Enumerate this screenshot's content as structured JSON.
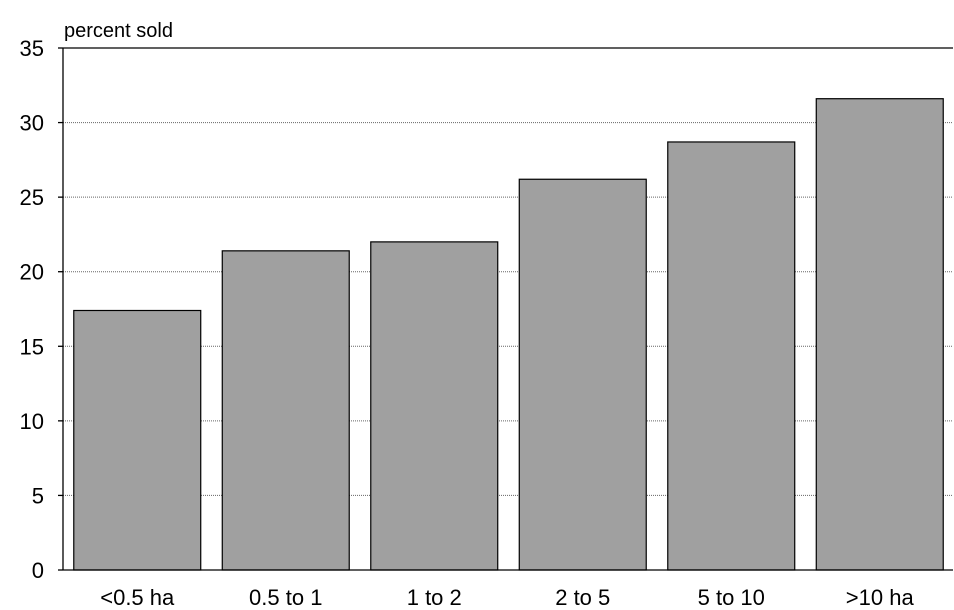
{
  "chart_data": {
    "type": "bar",
    "title": "",
    "xlabel": "",
    "ylabel": "percent sold",
    "categories": [
      "<0.5 ha",
      "0.5 to 1",
      "1 to 2",
      "2 to 5",
      "5 to 10",
      ">10 ha"
    ],
    "values": [
      17.4,
      21.4,
      22.0,
      26.2,
      28.7,
      31.6
    ],
    "ylim": [
      0,
      35
    ],
    "yticks": [
      0,
      5,
      10,
      15,
      20,
      25,
      30,
      35
    ],
    "grid": true,
    "legend": "none",
    "colors": {
      "bar_fill": "#a0a0a0",
      "bar_stroke": "#000000",
      "grid": "#666666",
      "axis": "#000000"
    }
  }
}
